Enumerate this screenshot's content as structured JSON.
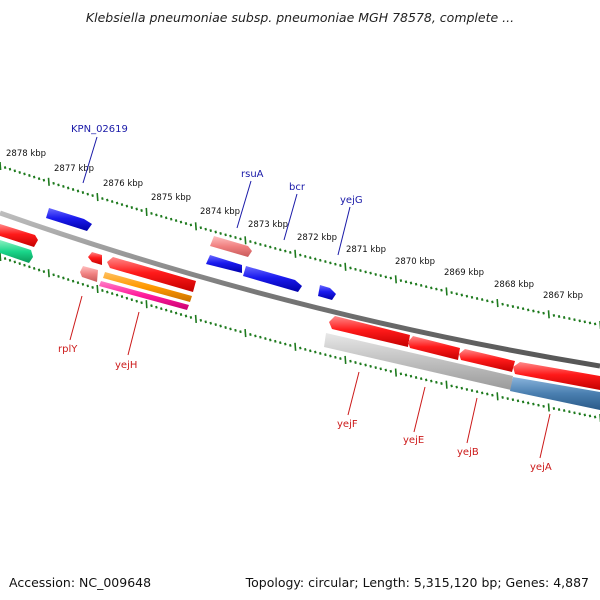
{
  "title": "Klebsiella pneumoniae subsp. pneumoniae MGH 78578, complete ...",
  "footer": {
    "accession": "Accession: NC_009648",
    "topology": "Topology: circular; Length: 5,315,120 bp; Genes: 4,887"
  },
  "colors": {
    "backbone": "#7a7a7a",
    "tick": "#1e7a1e",
    "label_plus": "#1a1aa8",
    "label_minus": "#cc1a1a",
    "red": "#ff1a1a",
    "blue": "#1a1aee",
    "pink": "#f08080",
    "gray": "#b8b8b8",
    "steel": "#4a7fb0",
    "orange": "#ff9900",
    "magenta": "#ff1a9a",
    "teal": "#1ad68a"
  },
  "scale": {
    "unit": "kbp",
    "labels": [
      "2878 kbp",
      "2877 kbp",
      "2876 kbp",
      "2875 kbp",
      "2874 kbp",
      "2873 kbp",
      "2872 kbp",
      "2871 kbp",
      "2870 kbp",
      "2869 kbp",
      "2868 kbp",
      "2867 kbp"
    ]
  },
  "gene_labels": {
    "plus_strand": [
      "KPN_02619",
      "rsuA",
      "bcr",
      "yejG"
    ],
    "minus_strand": [
      "rplY",
      "yejH",
      "yejF",
      "yejE",
      "yejB",
      "yejA"
    ]
  }
}
